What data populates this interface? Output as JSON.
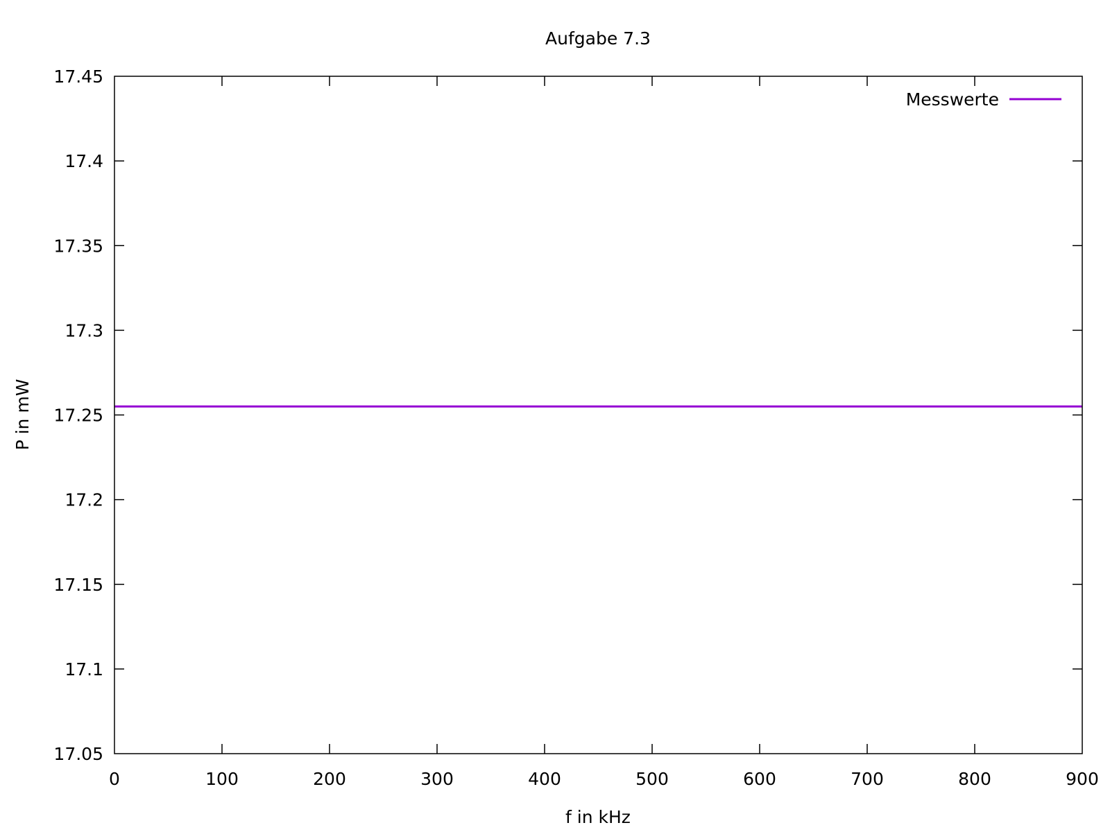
{
  "chart_data": {
    "type": "line",
    "title": "Aufgabe 7.3",
    "xlabel": "f in kHz",
    "ylabel": "P in mW",
    "xlim": [
      0,
      900
    ],
    "ylim": [
      17.05,
      17.45
    ],
    "x_ticks": [
      "0",
      "100",
      "200",
      "300",
      "400",
      "500",
      "600",
      "700",
      "800",
      "900"
    ],
    "y_ticks": [
      "17.05",
      "17.1",
      "17.15",
      "17.2",
      "17.25",
      "17.3",
      "17.35",
      "17.4",
      "17.45"
    ],
    "grid": false,
    "legend_position": "top-right",
    "series": [
      {
        "name": "Messwerte",
        "color": "#9400d3",
        "x": [
          0,
          900
        ],
        "y": [
          17.255,
          17.255
        ]
      }
    ]
  }
}
